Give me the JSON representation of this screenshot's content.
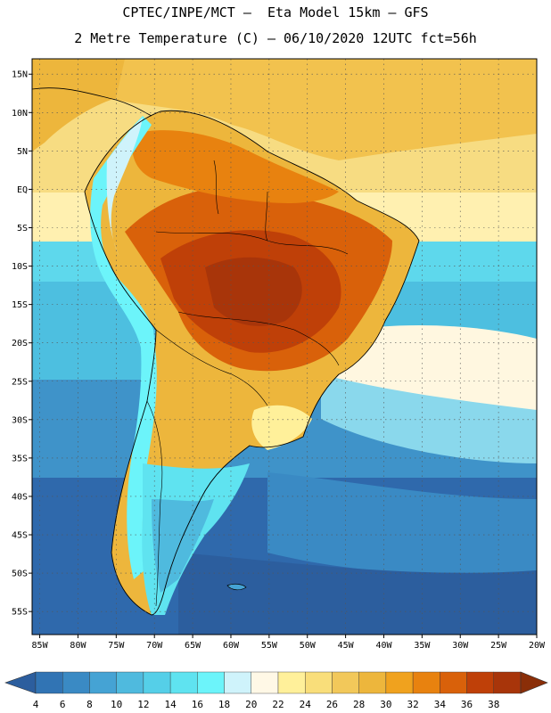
{
  "header": {
    "line1": "CPTEC/INPE/MCT –  Eta Model 15km – GFS",
    "line2": "2 Metre Temperature (C) – 06/10/2020 12UTC fct=56h"
  },
  "map": {
    "lat_range": [
      -58,
      17
    ],
    "lon_range": [
      -86,
      -20
    ],
    "lat_labels": [
      "15N",
      "10N",
      "5N",
      "EQ",
      "5S",
      "10S",
      "15S",
      "20S",
      "25S",
      "30S",
      "35S",
      "40S",
      "45S",
      "50S",
      "55S"
    ],
    "lon_labels": [
      "85W",
      "80W",
      "75W",
      "70W",
      "65W",
      "60W",
      "55W",
      "50W",
      "45W",
      "40W",
      "35W",
      "30W",
      "25W",
      "20W"
    ]
  },
  "legend": {
    "labels": [
      "4",
      "6",
      "8",
      "10",
      "12",
      "14",
      "16",
      "18",
      "20",
      "22",
      "24",
      "26",
      "28",
      "30",
      "32",
      "34",
      "36",
      "38"
    ],
    "colors": [
      "#2c5e9e",
      "#3174b4",
      "#3a8ac4",
      "#45a3d4",
      "#4fbade",
      "#55cfe8",
      "#5fe3f0",
      "#6cf4fa",
      "#cff3fb",
      "#fff8e6",
      "#fff09a",
      "#f9de7a",
      "#f2c85a",
      "#edb63c",
      "#f0a21e",
      "#e8820f",
      "#d9610a",
      "#bf4008",
      "#a8350a",
      "#8a2e08"
    ]
  }
}
